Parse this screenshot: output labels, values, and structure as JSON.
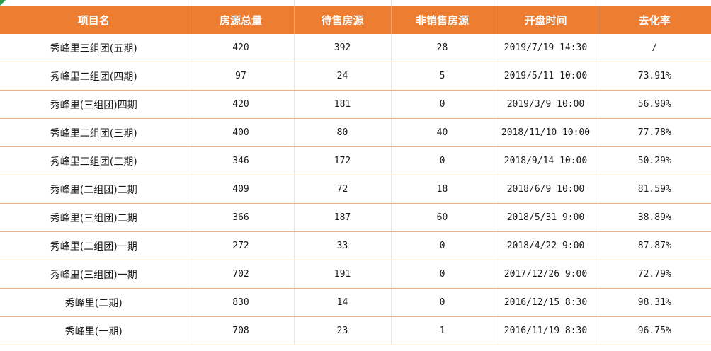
{
  "table": {
    "headers": [
      "项目名",
      "房源总量",
      "待售房源",
      "非销售房源",
      "开盘时间",
      "去化率"
    ],
    "rows": [
      [
        "秀峰里三组团(五期)",
        "420",
        "392",
        "28",
        "2019/7/19 14:30",
        "/"
      ],
      [
        "秀峰里二组团(四期)",
        "97",
        "24",
        "5",
        "2019/5/11 10:00",
        "73.91%"
      ],
      [
        "秀峰里(三组团)四期",
        "420",
        "181",
        "0",
        "2019/3/9 10:00",
        "56.90%"
      ],
      [
        "秀峰里二组团(三期)",
        "400",
        "80",
        "40",
        "2018/11/10 10:00",
        "77.78%"
      ],
      [
        "秀峰里三组团(三期)",
        "346",
        "172",
        "0",
        "2018/9/14 10:00",
        "50.29%"
      ],
      [
        "秀峰里(二组团)二期",
        "409",
        "72",
        "18",
        "2018/6/9 10:00",
        "81.59%"
      ],
      [
        "秀峰里(三组团)二期",
        "366",
        "187",
        "60",
        "2018/5/31 9:00",
        "38.89%"
      ],
      [
        "秀峰里(二组团)一期",
        "272",
        "33",
        "0",
        "2018/4/22 9:00",
        "87.87%"
      ],
      [
        "秀峰里(三组团)一期",
        "702",
        "191",
        "0",
        "2017/12/26 9:00",
        "72.79%"
      ],
      [
        "秀峰里(二期)",
        "830",
        "14",
        "0",
        "2016/12/15 8:30",
        "98.31%"
      ],
      [
        "秀峰里(一期)",
        "708",
        "23",
        "1",
        "2016/11/19 8:30",
        "96.75%"
      ]
    ]
  },
  "colors": {
    "header_bg": "#ed7d31",
    "header_text": "#ffffff",
    "row_border": "#f0b083",
    "corner_mark": "#2e9d4a"
  }
}
